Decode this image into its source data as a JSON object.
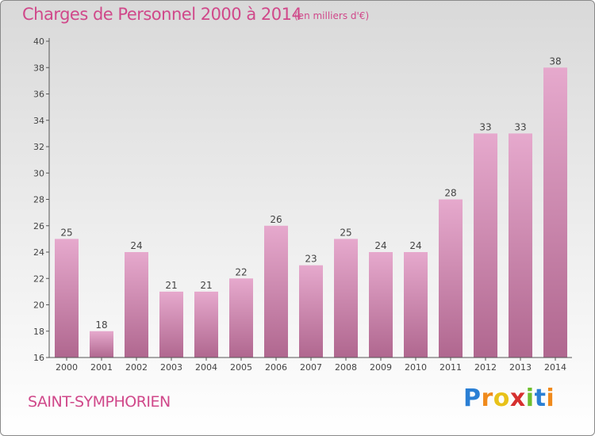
{
  "header": {
    "title": "Charges de Personnel 2000 à 2014",
    "subtitle": "(en milliers d'€)"
  },
  "footer": {
    "commune": "SAINT-SYMPHORIEN",
    "brand": {
      "letters": [
        "P",
        "r",
        "o",
        "x",
        "i",
        "t",
        "i"
      ],
      "colors": [
        "#2a7fd4",
        "#f08a1c",
        "#e8c21a",
        "#d6302f",
        "#6fbf2e",
        "#2a7fd4",
        "#f08a1c"
      ]
    }
  },
  "colors": {
    "accent": "#d0488a",
    "bar_top": "#e6a9cd",
    "bar_bottom": "#b0678f",
    "axis": "#555555"
  },
  "chart_data": {
    "type": "bar",
    "categories": [
      "2000",
      "2001",
      "2002",
      "2003",
      "2004",
      "2005",
      "2006",
      "2007",
      "2008",
      "2009",
      "2010",
      "2011",
      "2012",
      "2013",
      "2014"
    ],
    "values": [
      25,
      18,
      24,
      21,
      21,
      22,
      26,
      23,
      25,
      24,
      24,
      28,
      33,
      33,
      38
    ],
    "title": "Charges de Personnel 2000 à 2014",
    "xlabel": "",
    "ylabel": "",
    "ylim": [
      16,
      40
    ],
    "yticks": [
      16,
      18,
      20,
      22,
      24,
      26,
      28,
      30,
      32,
      34,
      36,
      38,
      40
    ],
    "grid": false,
    "data_labels": true
  }
}
